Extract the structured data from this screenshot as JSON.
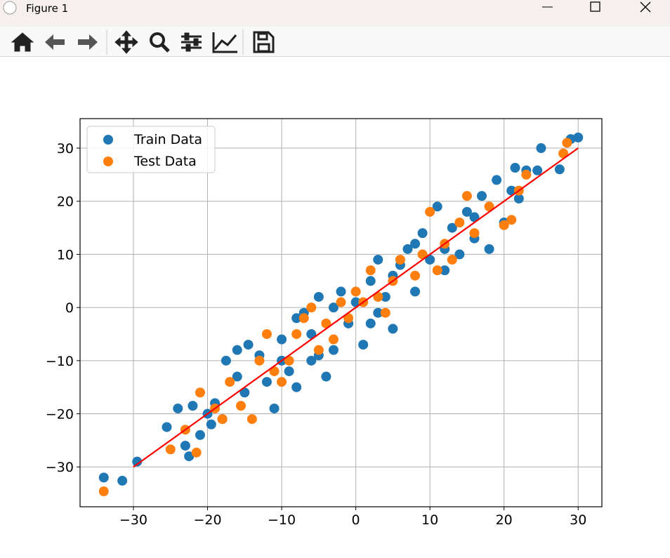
{
  "window": {
    "title": "Figure 1"
  },
  "chart_data": {
    "type": "scatter",
    "xlim": [
      -37.2,
      33.2
    ],
    "ylim": [
      -37.5,
      35.55
    ],
    "xticks": [
      {
        "value": -30,
        "label": "−30"
      },
      {
        "value": -20,
        "label": "−20"
      },
      {
        "value": -10,
        "label": "−10"
      },
      0,
      10,
      20,
      30
    ],
    "yticks": [
      {
        "value": -30,
        "label": "−30"
      },
      {
        "value": -20,
        "label": "−20"
      },
      {
        "value": -10,
        "label": "−10"
      },
      0,
      10,
      20,
      30
    ],
    "grid": true,
    "legend": "upper left",
    "series": [
      {
        "name": "Train Data",
        "color": "#1f77b4",
        "x": [
          -34,
          -31.5,
          -29.5,
          -25.5,
          -24,
          -23,
          -22.5,
          -22,
          -21,
          -20,
          -19.5,
          -18,
          -17.5,
          -16,
          -15,
          -14.5,
          -13,
          -12,
          -11,
          -10,
          -9,
          -8,
          -7,
          -6,
          -5,
          -4,
          -3,
          -2,
          -1,
          0,
          1,
          2,
          3,
          4,
          5,
          6,
          7,
          8,
          9,
          10,
          11,
          12,
          13,
          14,
          15,
          16,
          17,
          18,
          19,
          20,
          21,
          21.5,
          22,
          23,
          24.5,
          25,
          27.5,
          29,
          30,
          -8,
          -6,
          -3,
          2,
          5,
          8,
          12,
          -16,
          -10,
          -5,
          3,
          16,
          -19
        ],
        "y": [
          -32,
          -32.6,
          -29,
          -22.5,
          -19,
          -26,
          -28,
          -18.5,
          -24,
          -20,
          -22,
          -21,
          -10,
          -13,
          -16,
          -7,
          -9,
          -14,
          -19,
          -6,
          -12,
          -2,
          -1,
          -5,
          -9,
          -13,
          0,
          3,
          -3,
          1,
          -7,
          5,
          -1,
          2,
          -4,
          8,
          11,
          3,
          14,
          9,
          19,
          7,
          15,
          10,
          18,
          13,
          21,
          11,
          24,
          16,
          22,
          26.3,
          20.5,
          25.8,
          25.8,
          30,
          26,
          31.7,
          32,
          -15,
          -10,
          -8,
          -3,
          6,
          12,
          11,
          -8,
          -10,
          2,
          9,
          17,
          -18
        ]
      },
      {
        "name": "Test Data",
        "color": "#ff7f0e",
        "x": [
          -34,
          -25,
          -23,
          -21.5,
          -21,
          -19,
          -18,
          -17,
          -15.5,
          -14,
          -13,
          -12,
          -11,
          -10,
          -9,
          -8,
          -7,
          -6,
          -5,
          -4,
          -3,
          -2,
          -1,
          0,
          1,
          2,
          3,
          4,
          5,
          6,
          8,
          9,
          10,
          11,
          12,
          13,
          14,
          15,
          16,
          18,
          20,
          21,
          22,
          23,
          28,
          28.5
        ],
        "y": [
          -34.6,
          -26.7,
          -23,
          -27.3,
          -16,
          -19,
          -21,
          -14,
          -18.5,
          -21,
          -10,
          -5,
          -12,
          -14,
          -10,
          -5,
          -2,
          0,
          -8,
          -3,
          -6,
          1,
          -2,
          3,
          1,
          7,
          2,
          -1,
          5,
          9,
          6,
          10,
          18,
          7,
          12,
          9,
          16,
          21,
          14,
          19,
          15.5,
          16.5,
          22,
          25,
          29,
          31
        ]
      }
    ],
    "line": {
      "x": [
        -30,
        30
      ],
      "y": [
        -30,
        30
      ],
      "color": "#ff0000"
    }
  }
}
